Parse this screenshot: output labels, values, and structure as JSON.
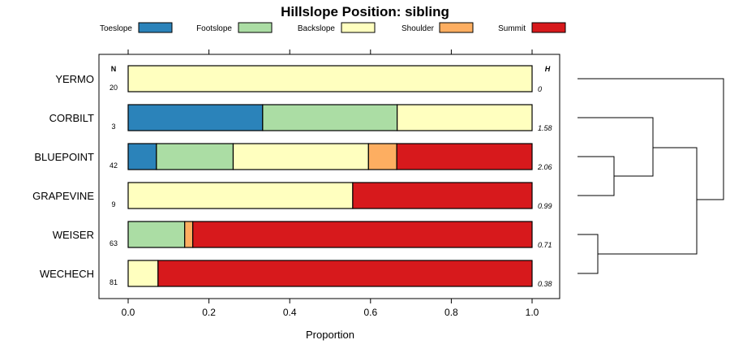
{
  "chart_data": {
    "type": "bar",
    "orientation": "horizontal",
    "stacked": true,
    "title": "Hillslope Position: sibling",
    "xlabel": "Proportion",
    "xlim": [
      0,
      1
    ],
    "x_ticks": [
      "0.0",
      "0.2",
      "0.4",
      "0.6",
      "0.8",
      "1.0"
    ],
    "tick_values": [
      0,
      0.2,
      0.4,
      0.6,
      0.8,
      1.0
    ],
    "n_header": "N",
    "h_header": "H",
    "legend_position": "top",
    "legend": [
      {
        "name": "Toeslope",
        "color": "#2b83ba"
      },
      {
        "name": "Footslope",
        "color": "#abdda4"
      },
      {
        "name": "Backslope",
        "color": "#ffffbf"
      },
      {
        "name": "Shoulder",
        "color": "#fdae61"
      },
      {
        "name": "Summit",
        "color": "#d7191c"
      }
    ],
    "categories": [
      "YERMO",
      "CORBILT",
      "BLUEPOINT",
      "GRAPEVINE",
      "WEISER",
      "WECHECH"
    ],
    "n": [
      "20",
      "3",
      "42",
      "9",
      "63",
      "81"
    ],
    "h": [
      "0",
      "1.58",
      "2.06",
      "0.99",
      "0.71",
      "0.38"
    ],
    "series": [
      {
        "name": "Toeslope",
        "values": [
          0,
          0.333,
          0.07,
          0,
          0,
          0
        ]
      },
      {
        "name": "Footslope",
        "values": [
          0,
          0.333,
          0.19,
          0,
          0.14,
          0
        ]
      },
      {
        "name": "Backslope",
        "values": [
          1,
          0.334,
          0.335,
          0.556,
          0,
          0.074
        ]
      },
      {
        "name": "Shoulder",
        "values": [
          0,
          0,
          0.07,
          0,
          0.02,
          0
        ]
      },
      {
        "name": "Summit",
        "values": [
          0,
          0,
          0.335,
          0.444,
          0.84,
          0.926
        ]
      }
    ],
    "dendrogram": "hierarchical clustering of categories"
  }
}
